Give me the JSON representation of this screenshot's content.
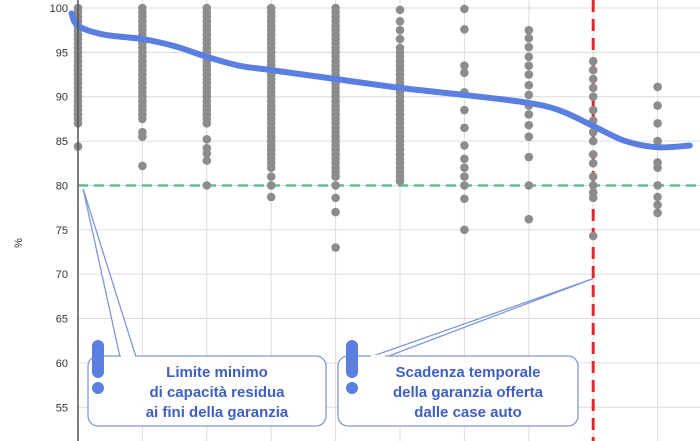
{
  "chart_data": {
    "type": "scatter",
    "title": "",
    "xlabel": "",
    "ylabel": "%",
    "ylim": [
      53,
      100
    ],
    "xlim": [
      0,
      10
    ],
    "y_ticks": [
      55,
      60,
      65,
      70,
      75,
      80,
      85,
      90,
      95,
      100
    ],
    "grid": true,
    "colors": {
      "points": "#8c8c8c",
      "trend": "#5b7fe0",
      "min_capacity_line": "#5cc08a",
      "warranty_line": "#e8262a",
      "callout_border": "#7f97d8",
      "callout_text": "#3f5fbf"
    },
    "scatter_columns": [
      {
        "x": 0,
        "values": [
          100,
          99.5,
          99,
          98.5,
          98,
          97.5,
          97,
          96.5,
          96,
          95.5,
          95,
          94.5,
          94,
          93.5,
          93,
          92.5,
          92,
          91.5,
          91,
          90.5,
          90,
          89.5,
          89,
          88.5,
          88,
          87.5,
          87,
          84.4
        ]
      },
      {
        "x": 1,
        "values": [
          100,
          99.5,
          99,
          98.5,
          98,
          97.5,
          97,
          96.5,
          96,
          95.5,
          95,
          94.5,
          94,
          93.5,
          93,
          92.5,
          92,
          91.5,
          91,
          90.5,
          90,
          89.5,
          89,
          88.5,
          88,
          87.5,
          86,
          85.5,
          82.2
        ]
      },
      {
        "x": 2,
        "values": [
          100,
          99.5,
          99,
          98.5,
          98,
          97.5,
          97,
          96.5,
          96,
          95.5,
          95,
          94.5,
          94,
          93.5,
          93,
          92.5,
          92,
          91.5,
          91,
          90.5,
          90,
          89.5,
          89,
          88.5,
          88,
          87.5,
          87,
          85.2,
          84.2,
          83.6,
          82.8,
          80
        ]
      },
      {
        "x": 3,
        "values": [
          100,
          99.5,
          99,
          98.5,
          98,
          97.5,
          97,
          96.5,
          96,
          95.5,
          95,
          94.5,
          94,
          93.5,
          93,
          92.5,
          92,
          91.5,
          91,
          90.5,
          90,
          89.5,
          89,
          88.5,
          88,
          87.5,
          87,
          86.5,
          86,
          85.5,
          85,
          84.5,
          84,
          83.5,
          83,
          82.5,
          82,
          81,
          80,
          78.7
        ]
      },
      {
        "x": 4,
        "values": [
          100,
          99.5,
          99,
          98.5,
          98,
          97.5,
          97,
          96.5,
          96,
          95.5,
          95,
          94.5,
          94,
          93.5,
          93,
          92.5,
          92,
          91.5,
          91,
          90.5,
          90,
          89.5,
          89,
          88.5,
          88,
          87.5,
          87,
          86.5,
          86,
          85.5,
          85,
          84.5,
          84,
          83.5,
          83,
          82.5,
          82,
          81.5,
          81,
          80,
          78.6,
          77,
          73
        ]
      },
      {
        "x": 5,
        "values": [
          99.8,
          98.5,
          97.5,
          96.5,
          95.5,
          95,
          94.5,
          94,
          93.5,
          93,
          92.5,
          92,
          91.5,
          91,
          90.5,
          90,
          89.5,
          89,
          88.5,
          88,
          87.5,
          87,
          86.5,
          86,
          85.5,
          85,
          84.5,
          84,
          83.5,
          83,
          82.5,
          82,
          81.5,
          81,
          80.5
        ]
      },
      {
        "x": 6,
        "values": [
          99.9,
          97.6,
          93.5,
          92.7,
          90.5,
          88.5,
          86.5,
          84.5,
          83,
          82,
          81,
          80,
          78.5,
          75
        ]
      },
      {
        "x": 7,
        "values": [
          97.5,
          96.6,
          95.6,
          94.5,
          93.5,
          92.5,
          91.3,
          90.2,
          89,
          88,
          86.8,
          85.5,
          83.2,
          80,
          76.2
        ]
      },
      {
        "x": 8,
        "values": [
          94,
          93,
          92,
          91,
          90,
          88.5,
          87.3,
          86,
          85,
          83.5,
          82.5,
          81,
          80,
          79.2,
          78.6,
          74.3
        ]
      },
      {
        "x": 9,
        "values": [
          91.1,
          89,
          87,
          85,
          82.6,
          82,
          80,
          78.7,
          77.8,
          76.9
        ]
      }
    ],
    "trend_line": {
      "x": [
        -0.1,
        0,
        0.4,
        1,
        1.5,
        2,
        2.5,
        3,
        4,
        5,
        6,
        7,
        7.5,
        8,
        8.5,
        9,
        9.5
      ],
      "y": [
        99.4,
        98,
        97,
        96.5,
        95.7,
        94.5,
        93.5,
        93,
        92,
        91,
        90.2,
        89.3,
        88.4,
        86.7,
        85,
        84.3,
        84.5
      ]
    },
    "reference_lines": [
      {
        "orientation": "horizontal",
        "value": 80,
        "style": "dashed"
      },
      {
        "orientation": "vertical",
        "value": 8,
        "style": "dashed"
      }
    ],
    "annotations": [
      {
        "lines": [
          "Limite minimo",
          "di capacità residua",
          "ai fini della garanzia"
        ],
        "points_to": {
          "x": 0.08,
          "y": 79.6
        }
      },
      {
        "lines": [
          "Scadenza temporale",
          "della garanzia offerta",
          "dalle case auto"
        ],
        "points_to": {
          "x": 8,
          "y": 69.5
        }
      }
    ]
  }
}
